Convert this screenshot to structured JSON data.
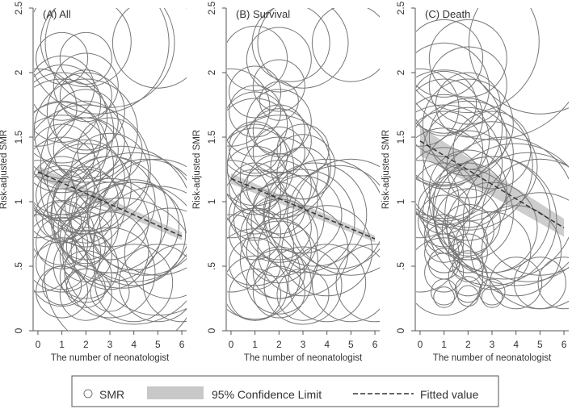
{
  "figure": {
    "legend": {
      "smr_label": "SMR",
      "ci_label": "95% Confidence Limit",
      "fit_label": "Fitted value"
    },
    "colors": {
      "bubble": "#777777",
      "ci_band": "#c8c8c8",
      "fit_line": "#333333",
      "axis": "#555555",
      "text": "#333333"
    }
  },
  "chart_data": [
    {
      "type": "scatter",
      "panel_label": "(A) All",
      "xlabel": "The number of neonatologist",
      "ylabel": "Risk-adjusted SMR",
      "xlim": [
        -0.2,
        6.2
      ],
      "ylim": [
        0,
        2.5
      ],
      "x_ticks": [
        "0",
        "1",
        "2",
        "3",
        "4",
        "5",
        "6"
      ],
      "y_ticks": [
        "0",
        ".5",
        "1",
        "1.5",
        "2",
        "2.5"
      ],
      "fit": {
        "intercept": 1.23,
        "slope": -0.083,
        "ci_halfwidth": 0.03
      },
      "points": [
        [
          0,
          1.73,
          0.3
        ],
        [
          0,
          1.02,
          0.3
        ],
        [
          0,
          0.6,
          0.3
        ],
        [
          1,
          2.11,
          0.2
        ],
        [
          1,
          1.88,
          0.25
        ],
        [
          1,
          1.76,
          0.3
        ],
        [
          1,
          1.65,
          0.35
        ],
        [
          1,
          1.55,
          0.4
        ],
        [
          1,
          1.48,
          0.3
        ],
        [
          1,
          1.42,
          0.35
        ],
        [
          1,
          1.35,
          0.25
        ],
        [
          1,
          1.27,
          0.4
        ],
        [
          1,
          1.2,
          0.3
        ],
        [
          1,
          1.1,
          0.25
        ],
        [
          1,
          1.05,
          0.2
        ],
        [
          1,
          0.98,
          0.3
        ],
        [
          1,
          0.9,
          0.2
        ],
        [
          1,
          0.85,
          0.15
        ],
        [
          1,
          0.76,
          0.25
        ],
        [
          1,
          0.68,
          0.2
        ],
        [
          1,
          0.6,
          0.3
        ],
        [
          1,
          0.52,
          0.2
        ],
        [
          1,
          0.44,
          0.25
        ],
        [
          1,
          0.35,
          0.15
        ],
        [
          1,
          0.3,
          0.2
        ],
        [
          2,
          2.24,
          0.35
        ],
        [
          2,
          2.11,
          0.2
        ],
        [
          2,
          1.9,
          0.25
        ],
        [
          2,
          1.82,
          0.2
        ],
        [
          2,
          1.7,
          0.3
        ],
        [
          2,
          1.62,
          0.25
        ],
        [
          2,
          1.55,
          0.4
        ],
        [
          2,
          1.48,
          0.3
        ],
        [
          2,
          1.4,
          0.25
        ],
        [
          2,
          1.3,
          0.35
        ],
        [
          2,
          1.25,
          0.5
        ],
        [
          2,
          1.18,
          0.3
        ],
        [
          2,
          1.1,
          0.35
        ],
        [
          2,
          1.02,
          0.25
        ],
        [
          2,
          0.95,
          0.3
        ],
        [
          2,
          0.88,
          0.2
        ],
        [
          2,
          0.8,
          0.25
        ],
        [
          2,
          0.72,
          0.2
        ],
        [
          2,
          0.65,
          0.15
        ],
        [
          2,
          0.58,
          0.2
        ],
        [
          2,
          0.5,
          0.25
        ],
        [
          2,
          0.42,
          0.2
        ],
        [
          2,
          0.33,
          0.15
        ],
        [
          2,
          0.28,
          0.2
        ],
        [
          2.5,
          2.23,
          0.55
        ],
        [
          3,
          2.23,
          0.5
        ],
        [
          3,
          1.4,
          0.25
        ],
        [
          3,
          1.23,
          0.3
        ],
        [
          3,
          1.0,
          0.35
        ],
        [
          3,
          0.9,
          0.45
        ],
        [
          3,
          0.85,
          0.3
        ],
        [
          3,
          0.78,
          0.4
        ],
        [
          3,
          0.62,
          0.3
        ],
        [
          3,
          0.45,
          0.35
        ],
        [
          3,
          0.3,
          0.15
        ],
        [
          3.5,
          0.43,
          0.6
        ],
        [
          3.5,
          0.88,
          0.55
        ],
        [
          4,
          0.88,
          0.5
        ],
        [
          4,
          0.82,
          0.35
        ],
        [
          4,
          0.75,
          0.4
        ],
        [
          4,
          0.37,
          0.3
        ],
        [
          4,
          0.6,
          0.55
        ],
        [
          4.5,
          0.88,
          0.45
        ],
        [
          5,
          2.23,
          0.35
        ],
        [
          5,
          0.88,
          0.45
        ],
        [
          5,
          0.62,
          0.5
        ],
        [
          5,
          0.37,
          0.3
        ],
        [
          5.5,
          0.6,
          0.35
        ],
        [
          6,
          0.37,
          0.3
        ]
      ]
    },
    {
      "type": "scatter",
      "panel_label": "(B) Survival",
      "xlabel": "The number of neonatologist",
      "ylabel": "Risk-adjusted SMR",
      "xlim": [
        -0.2,
        6.2
      ],
      "ylim": [
        0,
        2.5
      ],
      "x_ticks": [
        "0",
        "1",
        "2",
        "3",
        "4",
        "5",
        "6"
      ],
      "y_ticks": [
        "0",
        ".5",
        "1",
        "1.5",
        "2",
        "2.5"
      ],
      "fit": {
        "intercept": 1.18,
        "slope": -0.078,
        "ci_halfwidth": 0.025
      },
      "points": [
        [
          0,
          1.73,
          0.3
        ],
        [
          0,
          1.02,
          0.3
        ],
        [
          0,
          0.6,
          0.3
        ],
        [
          1,
          2.11,
          0.25
        ],
        [
          1,
          1.85,
          0.2
        ],
        [
          1,
          1.7,
          0.2
        ],
        [
          1,
          1.6,
          0.25
        ],
        [
          1,
          1.5,
          0.3
        ],
        [
          1,
          1.42,
          0.2
        ],
        [
          1,
          1.35,
          0.25
        ],
        [
          1,
          1.27,
          0.3
        ],
        [
          1,
          1.18,
          0.25
        ],
        [
          1,
          1.1,
          0.2
        ],
        [
          1,
          1.0,
          0.25
        ],
        [
          1,
          0.9,
          0.2
        ],
        [
          1,
          0.75,
          0.2
        ],
        [
          1,
          0.65,
          0.3
        ],
        [
          1,
          0.52,
          0.2
        ],
        [
          1,
          0.44,
          0.35
        ],
        [
          1,
          0.33,
          0.25
        ],
        [
          1,
          0.28,
          0.2
        ],
        [
          2,
          2.1,
          0.25
        ],
        [
          2,
          1.9,
          0.2
        ],
        [
          2,
          1.78,
          0.15
        ],
        [
          2,
          1.62,
          0.25
        ],
        [
          2,
          1.55,
          0.2
        ],
        [
          2,
          1.47,
          0.25
        ],
        [
          2,
          1.38,
          0.2
        ],
        [
          2,
          1.27,
          0.4
        ],
        [
          2,
          1.2,
          0.3
        ],
        [
          2,
          1.12,
          0.25
        ],
        [
          2,
          1.02,
          0.3
        ],
        [
          2,
          0.95,
          0.2
        ],
        [
          2,
          0.88,
          0.35
        ],
        [
          2,
          0.8,
          0.25
        ],
        [
          2,
          0.72,
          0.3
        ],
        [
          2,
          0.62,
          0.25
        ],
        [
          2,
          0.55,
          0.3
        ],
        [
          2,
          0.45,
          0.2
        ],
        [
          2,
          0.38,
          0.25
        ],
        [
          2,
          0.3,
          0.2
        ],
        [
          2.5,
          2.23,
          0.3
        ],
        [
          3,
          2.23,
          0.35
        ],
        [
          3,
          1.4,
          0.2
        ],
        [
          3,
          1.27,
          0.25
        ],
        [
          3,
          1.22,
          0.2
        ],
        [
          3,
          0.9,
          0.3
        ],
        [
          3,
          0.85,
          0.4
        ],
        [
          3,
          0.62,
          0.35
        ],
        [
          3,
          0.35,
          0.3
        ],
        [
          3,
          0.28,
          0.2
        ],
        [
          3.5,
          0.9,
          0.4
        ],
        [
          4,
          0.88,
          0.45
        ],
        [
          4,
          0.37,
          0.3
        ],
        [
          4,
          0.62,
          0.35
        ],
        [
          4.5,
          0.88,
          0.4
        ],
        [
          5,
          2.23,
          0.3
        ],
        [
          5,
          0.88,
          0.45
        ],
        [
          5,
          0.37,
          0.3
        ],
        [
          6,
          0.37,
          0.3
        ]
      ]
    },
    {
      "type": "scatter",
      "panel_label": "(C) Death",
      "xlabel": "The number of neonatologist",
      "ylabel": "Risk-adjusted SMR",
      "xlim": [
        -0.2,
        6.2
      ],
      "ylim": [
        0,
        2.5
      ],
      "x_ticks": [
        "0",
        "1",
        "2",
        "3",
        "4",
        "5",
        "6"
      ],
      "y_ticks": [
        "0",
        ".5",
        "1",
        "1.5",
        "2",
        "2.5"
      ],
      "fit": {
        "intercept": 1.47,
        "slope": -0.112,
        "ci_halfwidth": 0.07
      },
      "points": [
        [
          0,
          1.73,
          0.3
        ],
        [
          0,
          1.02,
          0.3
        ],
        [
          0,
          0.6,
          0.3
        ],
        [
          1,
          2.11,
          0.3
        ],
        [
          1,
          1.88,
          0.35
        ],
        [
          1,
          1.76,
          0.25
        ],
        [
          1,
          1.65,
          0.3
        ],
        [
          1,
          1.57,
          0.45
        ],
        [
          1,
          1.48,
          0.35
        ],
        [
          1,
          1.4,
          0.3
        ],
        [
          1,
          1.3,
          0.45
        ],
        [
          1,
          1.22,
          0.35
        ],
        [
          1,
          1.12,
          0.3
        ],
        [
          1,
          1.05,
          0.25
        ],
        [
          1,
          0.95,
          0.2
        ],
        [
          1,
          0.85,
          0.2
        ],
        [
          1,
          0.75,
          0.15
        ],
        [
          1,
          0.68,
          0.15
        ],
        [
          1,
          0.6,
          0.15
        ],
        [
          1,
          0.52,
          0.12
        ],
        [
          1,
          0.45,
          0.15
        ],
        [
          1,
          0.42,
          0.3
        ],
        [
          1,
          0.3,
          0.1
        ],
        [
          1,
          0.26,
          0.08
        ],
        [
          2,
          2.24,
          0.55
        ],
        [
          2,
          2.11,
          0.3
        ],
        [
          2,
          1.9,
          0.3
        ],
        [
          2,
          1.75,
          0.25
        ],
        [
          2,
          1.6,
          0.35
        ],
        [
          2,
          1.5,
          0.3
        ],
        [
          2,
          1.38,
          0.35
        ],
        [
          2,
          1.28,
          0.5
        ],
        [
          2,
          1.2,
          0.35
        ],
        [
          2,
          1.1,
          0.3
        ],
        [
          2,
          1.0,
          0.3
        ],
        [
          2,
          0.9,
          0.35
        ],
        [
          2,
          0.85,
          0.25
        ],
        [
          2,
          0.78,
          0.2
        ],
        [
          2,
          0.7,
          0.15
        ],
        [
          2,
          0.6,
          0.15
        ],
        [
          2,
          0.5,
          0.12
        ],
        [
          2,
          0.42,
          0.15
        ],
        [
          2,
          0.32,
          0.1
        ],
        [
          2,
          0.27,
          0.08
        ],
        [
          3,
          2.23,
          0.75
        ],
        [
          3,
          1.4,
          0.3
        ],
        [
          3,
          1.27,
          0.35
        ],
        [
          3,
          0.9,
          0.45
        ],
        [
          3,
          0.85,
          0.5
        ],
        [
          3,
          0.8,
          0.35
        ],
        [
          3,
          0.62,
          0.3
        ],
        [
          3,
          0.3,
          0.1
        ],
        [
          3,
          0.26,
          0.08
        ],
        [
          3.5,
          0.95,
          0.55
        ],
        [
          4,
          0.9,
          0.55
        ],
        [
          4,
          0.62,
          0.35
        ],
        [
          4,
          0.37,
          0.2
        ],
        [
          4.5,
          0.88,
          0.5
        ],
        [
          5,
          2.23,
          0.55
        ],
        [
          5,
          0.88,
          0.45
        ],
        [
          5,
          0.62,
          0.45
        ],
        [
          5,
          0.37,
          0.2
        ],
        [
          6,
          0.37,
          0.2
        ]
      ]
    }
  ]
}
